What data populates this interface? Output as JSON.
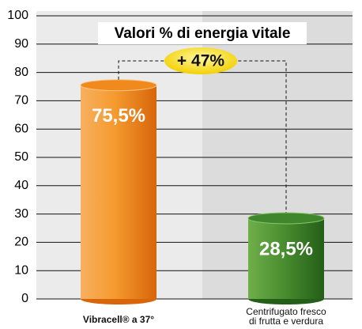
{
  "chart_data": {
    "type": "bar",
    "title": "Valori % di energia vitale",
    "categories": [
      "Vibracell® a 37°",
      "Centrifugato fresco di frutta e verdura"
    ],
    "values": [
      75.5,
      28.5
    ],
    "value_labels": [
      "75,5%",
      "28,5%"
    ],
    "colors": [
      "#f08a1c",
      "#3f862c"
    ],
    "annotation": "+ 47%",
    "ylim": [
      0,
      100
    ],
    "yticks": [
      0,
      10,
      20,
      30,
      40,
      50,
      60,
      70,
      80,
      90,
      100
    ],
    "grid": true
  }
}
